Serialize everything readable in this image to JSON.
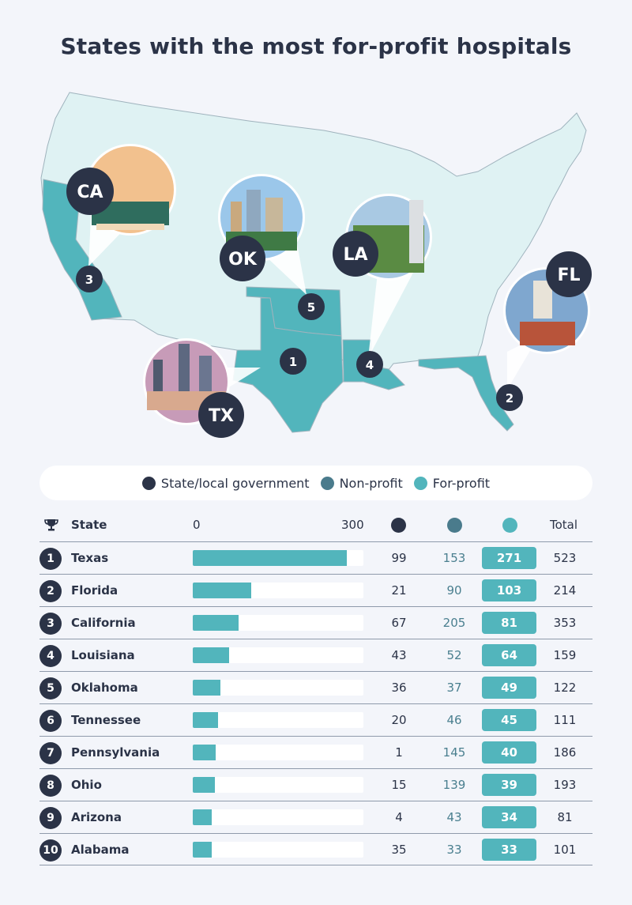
{
  "title": "States with the most for-profit hospitals",
  "colors": {
    "gov": "#2b3347",
    "nonprofit": "#4a7b8c",
    "forprofit": "#52b5bc",
    "map_base": "#dff2f3"
  },
  "map": {
    "badges": [
      {
        "code": "CA",
        "rank": "3"
      },
      {
        "code": "OK",
        "rank": "5"
      },
      {
        "code": "LA",
        "rank": "4"
      },
      {
        "code": "FL",
        "rank": "2"
      },
      {
        "code": "TX",
        "rank": "1"
      }
    ]
  },
  "legend": {
    "gov": "State/local government",
    "nonprofit": "Non-profit",
    "forprofit": "For-profit"
  },
  "table": {
    "state_header": "State",
    "scale_min": "0",
    "scale_max": "300",
    "total_header": "Total"
  },
  "chart_data": {
    "type": "bar",
    "title": "States with the most for-profit hospitals",
    "xlim": [
      0,
      300
    ],
    "series_names": [
      "State/local government",
      "Non-profit",
      "For-profit"
    ],
    "rows": [
      {
        "rank": "1",
        "state": "Texas",
        "gov": 99,
        "nonprofit": 153,
        "forprofit": 271,
        "total": 523
      },
      {
        "rank": "2",
        "state": "Florida",
        "gov": 21,
        "nonprofit": 90,
        "forprofit": 103,
        "total": 214
      },
      {
        "rank": "3",
        "state": "California",
        "gov": 67,
        "nonprofit": 205,
        "forprofit": 81,
        "total": 353
      },
      {
        "rank": "4",
        "state": "Louisiana",
        "gov": 43,
        "nonprofit": 52,
        "forprofit": 64,
        "total": 159
      },
      {
        "rank": "5",
        "state": "Oklahoma",
        "gov": 36,
        "nonprofit": 37,
        "forprofit": 49,
        "total": 122
      },
      {
        "rank": "6",
        "state": "Tennessee",
        "gov": 20,
        "nonprofit": 46,
        "forprofit": 45,
        "total": 111
      },
      {
        "rank": "7",
        "state": "Pennsylvania",
        "gov": 1,
        "nonprofit": 145,
        "forprofit": 40,
        "total": 186
      },
      {
        "rank": "8",
        "state": "Ohio",
        "gov": 15,
        "nonprofit": 139,
        "forprofit": 39,
        "total": 193
      },
      {
        "rank": "9",
        "state": "Arizona",
        "gov": 4,
        "nonprofit": 43,
        "forprofit": 34,
        "total": 81
      },
      {
        "rank": "10",
        "state": "Alabama",
        "gov": 35,
        "nonprofit": 33,
        "forprofit": 33,
        "total": 101
      }
    ]
  }
}
